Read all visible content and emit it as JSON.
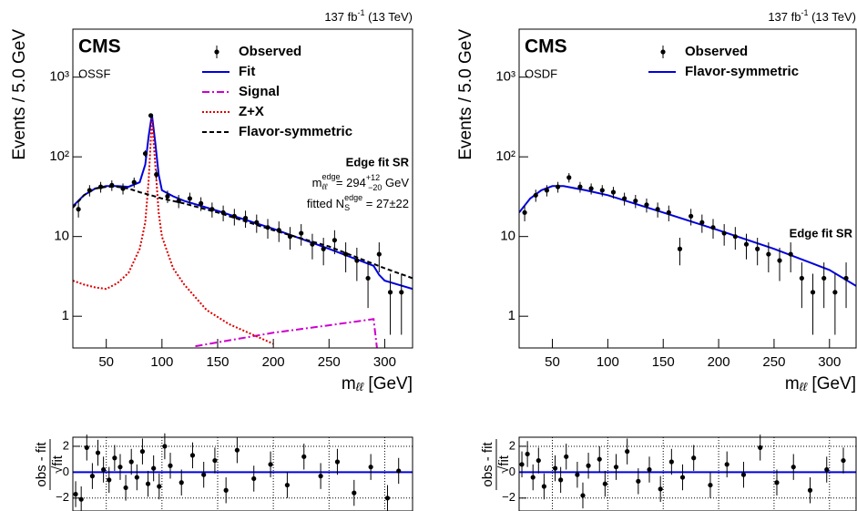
{
  "chart_data": [
    {
      "type": "errorbar",
      "cms": "CMS",
      "channel": "OSSF",
      "lumi": {
        "base": "137 fb",
        "sup": "-1",
        "rest": " (13 TeV)"
      },
      "y_label": "Events / 5.0 GeV",
      "x_label": {
        "base": "m",
        "sub": "ℓℓ",
        "unit": " [GeV]"
      },
      "xlim": [
        20,
        325
      ],
      "ylim": [
        0.4,
        4000
      ],
      "log_y": true,
      "xticks": [
        50,
        100,
        150,
        200,
        250,
        300
      ],
      "yticks": [
        1,
        10,
        {
          "value": 100,
          "label": "10²"
        },
        {
          "value": 1000,
          "label": "10³"
        }
      ],
      "observed": {
        "name": "Observed",
        "color": "#000000",
        "x": [
          25,
          35,
          45,
          55,
          65,
          75,
          85,
          90,
          95,
          105,
          115,
          125,
          135,
          145,
          155,
          165,
          175,
          185,
          195,
          205,
          215,
          225,
          235,
          245,
          255,
          265,
          275,
          285,
          295,
          305,
          315
        ],
        "values": [
          22,
          38,
          42,
          44,
          40,
          48,
          110,
          330,
          60,
          32,
          28,
          30,
          26,
          22,
          20,
          18,
          17,
          15,
          13,
          12,
          10,
          11,
          8,
          7,
          9,
          6,
          5,
          3,
          6,
          2,
          2
        ]
      },
      "series": [
        {
          "name": "Fit",
          "color": "#0000dd",
          "dash": "solid",
          "x": [
            20,
            30,
            40,
            50,
            60,
            70,
            80,
            85,
            88,
            91,
            94,
            97,
            100,
            110,
            120,
            150,
            200,
            250,
            290,
            295,
            300,
            325
          ],
          "values": [
            24,
            33,
            40,
            43,
            43,
            42,
            48,
            80,
            180,
            340,
            150,
            60,
            38,
            32,
            28,
            21,
            12.5,
            7,
            4.3,
            3.3,
            2.8,
            2.2
          ]
        },
        {
          "name": "Signal",
          "color": "#cc00cc",
          "dash": "dashdot",
          "x": [
            130,
            200,
            250,
            290,
            293
          ],
          "values": [
            0.42,
            0.62,
            0.77,
            0.92,
            0.4
          ]
        },
        {
          "name": "Z+X",
          "color": "#dd0000",
          "dash": "dotted",
          "x": [
            20,
            30,
            40,
            50,
            60,
            70,
            80,
            85,
            88,
            91,
            94,
            97,
            100,
            110,
            120,
            140,
            160,
            180,
            200
          ],
          "values": [
            2.8,
            2.5,
            2.3,
            2.2,
            2.6,
            3.5,
            7,
            15,
            50,
            300,
            80,
            20,
            10,
            4,
            2.5,
            1.2,
            0.8,
            0.6,
            0.45
          ]
        },
        {
          "name": "Flavor-symmetric",
          "color": "#000000",
          "dash": "dashed",
          "x": [
            20,
            30,
            40,
            50,
            60,
            70,
            80,
            90,
            100,
            120,
            150,
            200,
            250,
            300,
            325
          ],
          "values": [
            23,
            33,
            40,
            42,
            42,
            40,
            36,
            33,
            30,
            26,
            20,
            12,
            7.5,
            4,
            3
          ]
        }
      ],
      "annotation": {
        "title": "Edge fit SR",
        "edge": {
          "m": "m",
          "sup": "edge",
          "sub": "ℓℓ",
          "eq": " = 294",
          "up": "+12",
          "down": "−20",
          "unit": " GeV"
        },
        "ns": {
          "pre": "fitted N",
          "sup": "edge",
          "sub": "S",
          "eq": " = 27±22"
        }
      }
    },
    {
      "type": "ratio",
      "y_label_num": "obs - fit",
      "y_label_den": "√fit",
      "xlim": [
        20,
        325
      ],
      "ylim": [
        -3,
        2.7
      ],
      "grid": true,
      "xticks": [
        50,
        100,
        150,
        200,
        250,
        300
      ],
      "yticks": [
        2,
        0,
        {
          "value": -2,
          "label": "−2"
        }
      ],
      "reference": 0,
      "reference_color": "#0000dd",
      "error": 1,
      "x": [
        22.5,
        27.5,
        32.5,
        37.5,
        42.5,
        47.5,
        52.5,
        57.5,
        62.5,
        67.5,
        72.5,
        77.5,
        82.5,
        87.5,
        92.5,
        97.5,
        102.5,
        107.5,
        117.5,
        127.5,
        137.5,
        147.5,
        157.5,
        167.5,
        182.5,
        197.5,
        212.5,
        227.5,
        242.5,
        257.5,
        272.5,
        287.5,
        302.5,
        312.5
      ],
      "values": [
        -1.7,
        -2.1,
        1.9,
        -0.3,
        1.5,
        0.2,
        -0.6,
        1.1,
        0.4,
        -1.2,
        0.8,
        -0.4,
        1.6,
        -0.9,
        0.3,
        -1.1,
        2.0,
        0.5,
        -0.8,
        1.3,
        -0.2,
        0.9,
        -1.4,
        1.7,
        -0.5,
        0.6,
        -1.0,
        1.2,
        -0.3,
        0.8,
        -1.6,
        0.4,
        -2.0,
        0.1
      ]
    },
    {
      "type": "errorbar",
      "cms": "CMS",
      "channel": "OSDF",
      "lumi": {
        "base": "137 fb",
        "sup": "-1",
        "rest": " (13 TeV)"
      },
      "y_label": "Events / 5.0 GeV",
      "x_label": {
        "base": "m",
        "sub": "ℓℓ",
        "unit": " [GeV]"
      },
      "xlim": [
        20,
        324
      ],
      "ylim": [
        0.4,
        4000
      ],
      "log_y": true,
      "xticks": [
        50,
        100,
        150,
        200,
        250,
        300
      ],
      "yticks": [
        1,
        10,
        {
          "value": 100,
          "label": "10²"
        },
        {
          "value": 1000,
          "label": "10³"
        }
      ],
      "observed": {
        "name": "Observed",
        "color": "#000000",
        "x": [
          25,
          35,
          45,
          55,
          65,
          75,
          85,
          95,
          105,
          115,
          125,
          135,
          145,
          155,
          165,
          175,
          185,
          195,
          205,
          215,
          225,
          235,
          245,
          255,
          265,
          275,
          285,
          295,
          305,
          315
        ],
        "values": [
          20,
          33,
          38,
          42,
          55,
          42,
          40,
          38,
          36,
          30,
          28,
          25,
          22,
          20,
          7,
          18,
          15,
          13,
          11,
          10,
          8,
          7,
          6,
          5,
          6,
          3,
          2,
          3,
          2,
          3
        ]
      },
      "series": [
        {
          "name": "Flavor-symmetric",
          "color": "#0000dd",
          "dash": "solid",
          "x": [
            20,
            30,
            40,
            50,
            60,
            80,
            100,
            150,
            200,
            250,
            300,
            324
          ],
          "values": [
            20,
            30,
            38,
            43,
            43,
            38,
            33,
            20,
            12,
            7,
            3.8,
            2.4
          ]
        }
      ],
      "annotation": {
        "title": "Edge fit SR"
      }
    },
    {
      "type": "ratio",
      "y_label_num": "obs - fit",
      "y_label_den": "√fit",
      "xlim": [
        20,
        324
      ],
      "ylim": [
        -3,
        2.7
      ],
      "grid": true,
      "xticks": [
        50,
        100,
        150,
        200,
        250,
        300
      ],
      "yticks": [
        2,
        0,
        {
          "value": -2,
          "label": "−2"
        }
      ],
      "reference": 0,
      "reference_color": "#0000dd",
      "error": 1,
      "x": [
        22.5,
        27.5,
        32.5,
        37.5,
        42.5,
        52.5,
        57.5,
        62.5,
        72.5,
        77.5,
        82.5,
        92.5,
        97.5,
        107.5,
        117.5,
        127.5,
        137.5,
        147.5,
        157.5,
        167.5,
        177.5,
        192.5,
        207.5,
        222.5,
        237.5,
        252.5,
        267.5,
        282.5,
        297.5,
        312.5
      ],
      "values": [
        0.6,
        1.4,
        -0.4,
        0.9,
        -1.1,
        0.3,
        -0.6,
        1.2,
        -0.2,
        -1.8,
        0.5,
        1.0,
        -0.9,
        0.4,
        1.6,
        -0.7,
        0.2,
        -1.3,
        0.8,
        -0.4,
        1.1,
        -1.0,
        0.6,
        -0.2,
        1.9,
        -0.8,
        0.4,
        -1.4,
        0.2,
        0.9
      ]
    }
  ]
}
